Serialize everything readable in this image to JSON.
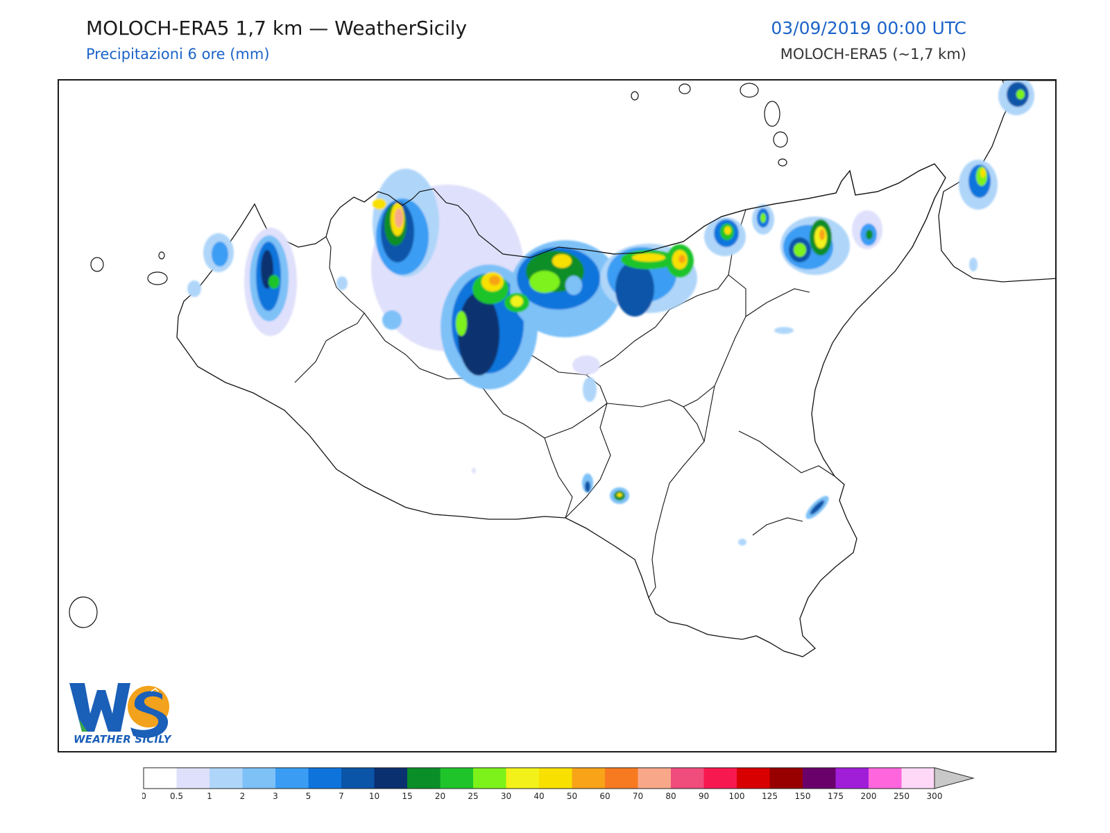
{
  "header": {
    "title": "MOLOCH-ERA5 1,7 km — WeatherSicily",
    "subtitle": "Precipitazioni 6 ore (mm)",
    "datetime": "03/09/2019 00:00 UTC",
    "model": "MOLOCH-ERA5 (~1,7 km)"
  },
  "logo": {
    "caption": "WEATHER SICILY",
    "colors": {
      "blue": "#1a5fb8",
      "green": "#3aa84a",
      "orange": "#f2a21c"
    }
  },
  "legend": {
    "levels": [
      "0",
      "0.5",
      "1",
      "2",
      "3",
      "5",
      "7",
      "10",
      "15",
      "20",
      "25",
      "30",
      "40",
      "50",
      "60",
      "70",
      "80",
      "90",
      "100",
      "125",
      "150",
      "175",
      "200",
      "250",
      "300"
    ],
    "colors": [
      "#ffffff",
      "#dfe0fb",
      "#afd6f9",
      "#7dc1f7",
      "#3a9df3",
      "#0e74dc",
      "#0a55a8",
      "#0a3070",
      "#0a8e28",
      "#1fc42a",
      "#7df21a",
      "#f2f21a",
      "#f8e000",
      "#f8a318",
      "#f87a20",
      "#f8a888",
      "#f04c7c",
      "#f81850",
      "#d80000",
      "#980000",
      "#6a006a",
      "#a01ed8",
      "#ff66dd",
      "#ffd8f8"
    ],
    "overflow_color": "#c8c8c8"
  }
}
